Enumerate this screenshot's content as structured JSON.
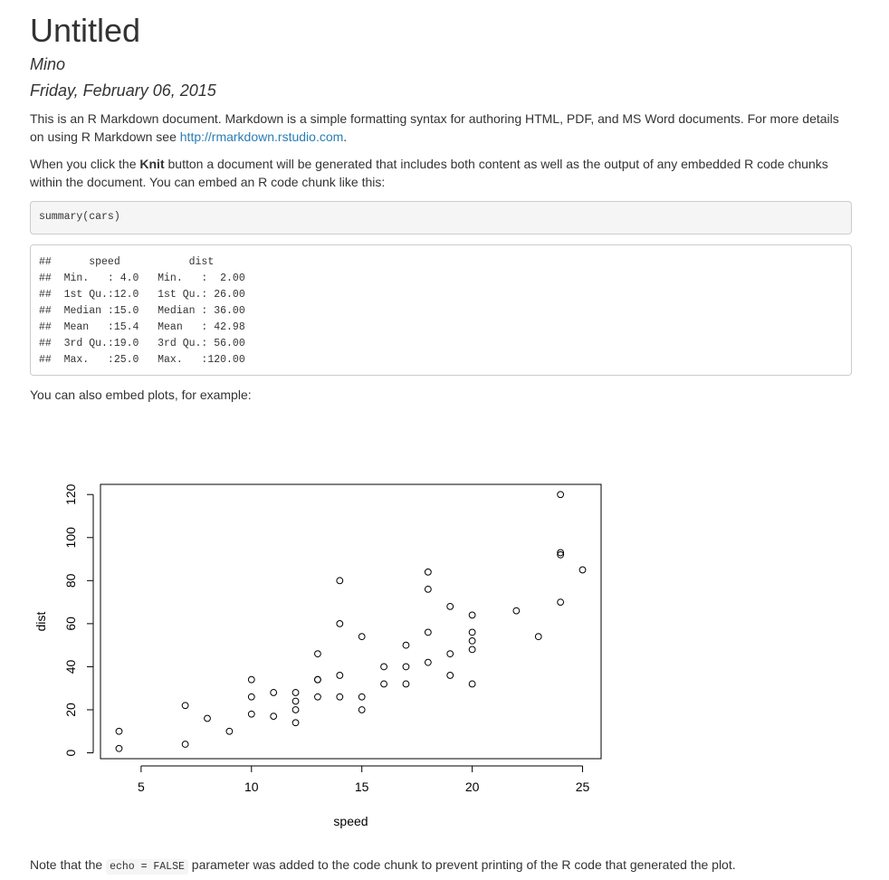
{
  "doc": {
    "title": "Untitled",
    "author": "Mino",
    "date": "Friday, February 06, 2015"
  },
  "paragraphs": {
    "p1_text": "This is an R Markdown document. Markdown is a simple formatting syntax for authoring HTML, PDF, and MS Word documents. For more details on using R Markdown see ",
    "p1_link": "http://rmarkdown.rstudio.com",
    "p1_end": ".",
    "p2_a": "When you click the ",
    "p2_bold": "Knit",
    "p2_b": " button a document will be generated that includes both content as well as the output of any embedded R code chunks within the document. You can embed an R code chunk like this:",
    "p3": "You can also embed plots, for example:",
    "p4_a": "Note that the ",
    "p4_code": "echo = FALSE",
    "p4_b": " parameter was added to the code chunk to prevent printing of the R code that generated the plot."
  },
  "code_chunk": "summary(cars)",
  "output_lines": [
    "##      speed           dist       ",
    "##  Min.   : 4.0   Min.   :  2.00  ",
    "##  1st Qu.:12.0   1st Qu.: 26.00  ",
    "##  Median :15.0   Median : 36.00  ",
    "##  Mean   :15.4   Mean   : 42.98  ",
    "##  3rd Qu.:19.0   3rd Qu.: 56.00  ",
    "##  Max.   :25.0   Max.   :120.00  "
  ],
  "chart_data": {
    "type": "scatter",
    "xlabel": "speed",
    "ylabel": "dist",
    "xlim": [
      3.16,
      25.84
    ],
    "ylim": [
      -2.72,
      124.72
    ],
    "xticks": [
      5,
      10,
      15,
      20,
      25
    ],
    "yticks": [
      0,
      20,
      40,
      60,
      80,
      100,
      120
    ],
    "grid": false,
    "points": [
      [
        4,
        2
      ],
      [
        4,
        10
      ],
      [
        7,
        4
      ],
      [
        7,
        22
      ],
      [
        8,
        16
      ],
      [
        9,
        10
      ],
      [
        10,
        18
      ],
      [
        10,
        26
      ],
      [
        10,
        34
      ],
      [
        11,
        17
      ],
      [
        11,
        28
      ],
      [
        12,
        14
      ],
      [
        12,
        20
      ],
      [
        12,
        24
      ],
      [
        12,
        28
      ],
      [
        13,
        26
      ],
      [
        13,
        34
      ],
      [
        13,
        34
      ],
      [
        13,
        46
      ],
      [
        14,
        26
      ],
      [
        14,
        36
      ],
      [
        14,
        60
      ],
      [
        14,
        80
      ],
      [
        15,
        20
      ],
      [
        15,
        26
      ],
      [
        15,
        54
      ],
      [
        16,
        32
      ],
      [
        16,
        40
      ],
      [
        17,
        32
      ],
      [
        17,
        40
      ],
      [
        17,
        50
      ],
      [
        18,
        42
      ],
      [
        18,
        56
      ],
      [
        18,
        76
      ],
      [
        18,
        84
      ],
      [
        19,
        36
      ],
      [
        19,
        46
      ],
      [
        19,
        68
      ],
      [
        20,
        32
      ],
      [
        20,
        48
      ],
      [
        20,
        52
      ],
      [
        20,
        56
      ],
      [
        20,
        64
      ],
      [
        22,
        66
      ],
      [
        23,
        54
      ],
      [
        24,
        70
      ],
      [
        24,
        92
      ],
      [
        24,
        93
      ],
      [
        24,
        120
      ],
      [
        25,
        85
      ]
    ]
  }
}
